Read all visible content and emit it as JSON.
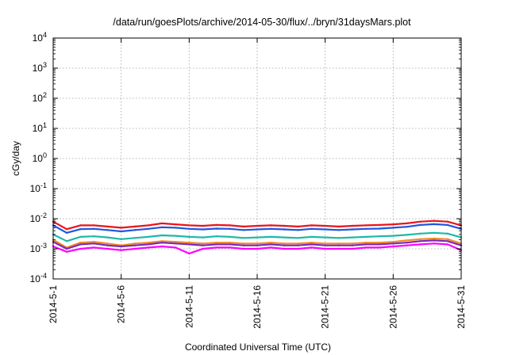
{
  "chart_data": {
    "type": "line",
    "title": "/data/run/goesPlots/archive/2014-05-30/flux/../bryn/31daysMars.plot",
    "xlabel": "Coordinated Universal Time (UTC)",
    "ylabel": "cGy/day",
    "yscale": "log",
    "ylim": [
      0.0001,
      10000
    ],
    "xlim": [
      "2014-05-01",
      "2014-05-31"
    ],
    "grid": true,
    "legend": "none",
    "y_ticks": [
      {
        "value": 0.0001,
        "base": "10",
        "exp": "-4"
      },
      {
        "value": 0.001,
        "base": "10",
        "exp": "-3"
      },
      {
        "value": 0.01,
        "base": "10",
        "exp": "-2"
      },
      {
        "value": 0.1,
        "base": "10",
        "exp": "-1"
      },
      {
        "value": 1,
        "base": "10",
        "exp": "0"
      },
      {
        "value": 10,
        "base": "10",
        "exp": "1"
      },
      {
        "value": 100,
        "base": "10",
        "exp": "2"
      },
      {
        "value": 1000,
        "base": "10",
        "exp": "3"
      },
      {
        "value": 10000,
        "base": "10",
        "exp": "4"
      }
    ],
    "x_ticks": [
      "2014-5-1",
      "2014-5-6",
      "2014-5-11",
      "2014-5-16",
      "2014-5-21",
      "2014-5-26",
      "2014-5-31"
    ],
    "x_tick_dates": [
      "2014-05-01",
      "2014-05-06",
      "2014-05-11",
      "2014-05-16",
      "2014-05-21",
      "2014-05-26",
      "2014-05-31"
    ],
    "x": [
      "2014-05-01",
      "2014-05-02",
      "2014-05-03",
      "2014-05-04",
      "2014-05-05",
      "2014-05-06",
      "2014-05-07",
      "2014-05-08",
      "2014-05-09",
      "2014-05-10",
      "2014-05-11",
      "2014-05-12",
      "2014-05-13",
      "2014-05-14",
      "2014-05-15",
      "2014-05-16",
      "2014-05-17",
      "2014-05-18",
      "2014-05-19",
      "2014-05-20",
      "2014-05-21",
      "2014-05-22",
      "2014-05-23",
      "2014-05-24",
      "2014-05-25",
      "2014-05-26",
      "2014-05-27",
      "2014-05-28",
      "2014-05-29",
      "2014-05-30",
      "2014-05-31"
    ],
    "series": [
      {
        "color": "#e8151b",
        "values": [
          0.008,
          0.0045,
          0.006,
          0.006,
          0.0055,
          0.005,
          0.0055,
          0.006,
          0.007,
          0.0065,
          0.006,
          0.0058,
          0.0062,
          0.006,
          0.0055,
          0.0058,
          0.006,
          0.0058,
          0.0055,
          0.006,
          0.0058,
          0.0055,
          0.0058,
          0.006,
          0.0062,
          0.0065,
          0.007,
          0.008,
          0.0085,
          0.008,
          0.006
        ]
      },
      {
        "color": "#2255e0",
        "values": [
          0.006,
          0.0034,
          0.0045,
          0.0046,
          0.0042,
          0.0038,
          0.0042,
          0.0046,
          0.0052,
          0.005,
          0.0046,
          0.0044,
          0.0047,
          0.0046,
          0.0042,
          0.0044,
          0.0046,
          0.0044,
          0.0042,
          0.0046,
          0.0044,
          0.0042,
          0.0044,
          0.0046,
          0.0047,
          0.005,
          0.0054,
          0.0062,
          0.0066,
          0.0062,
          0.0046
        ]
      },
      {
        "color": "#1fb8a8",
        "values": [
          0.003,
          0.0018,
          0.0025,
          0.0026,
          0.0024,
          0.0021,
          0.0023,
          0.0025,
          0.0028,
          0.0027,
          0.0025,
          0.0024,
          0.0026,
          0.0025,
          0.0023,
          0.0024,
          0.0025,
          0.0024,
          0.0023,
          0.0025,
          0.0024,
          0.0023,
          0.0024,
          0.0025,
          0.0026,
          0.0027,
          0.0029,
          0.0032,
          0.0034,
          0.0032,
          0.0024
        ]
      },
      {
        "color": "#f28c28",
        "values": [
          0.002,
          0.0011,
          0.0016,
          0.0017,
          0.0015,
          0.0013,
          0.0015,
          0.0016,
          0.0018,
          0.0017,
          0.0016,
          0.0015,
          0.0016,
          0.0016,
          0.0015,
          0.0015,
          0.0016,
          0.0015,
          0.0015,
          0.0016,
          0.0015,
          0.0015,
          0.0015,
          0.0016,
          0.0016,
          0.0017,
          0.0019,
          0.0021,
          0.0022,
          0.0021,
          0.0015
        ]
      },
      {
        "color": "#7a2ab8",
        "values": [
          0.0017,
          0.001,
          0.0014,
          0.0015,
          0.0013,
          0.0012,
          0.0013,
          0.0014,
          0.0016,
          0.0015,
          0.0014,
          0.0013,
          0.0014,
          0.0014,
          0.0013,
          0.0013,
          0.0014,
          0.0013,
          0.0013,
          0.0014,
          0.0013,
          0.0013,
          0.0013,
          0.0014,
          0.0014,
          0.0015,
          0.0016,
          0.0018,
          0.0019,
          0.0018,
          0.0013
        ]
      },
      {
        "color": "#ff00ff",
        "values": [
          0.0012,
          0.0008,
          0.001,
          0.0011,
          0.001,
          0.0009,
          0.001,
          0.0011,
          0.0012,
          0.0011,
          0.0007,
          0.001,
          0.0011,
          0.0011,
          0.001,
          0.001,
          0.0011,
          0.001,
          0.001,
          0.0011,
          0.001,
          0.001,
          0.001,
          0.0011,
          0.0011,
          0.0012,
          0.0013,
          0.0014,
          0.0015,
          0.0014,
          0.0009
        ]
      }
    ]
  }
}
